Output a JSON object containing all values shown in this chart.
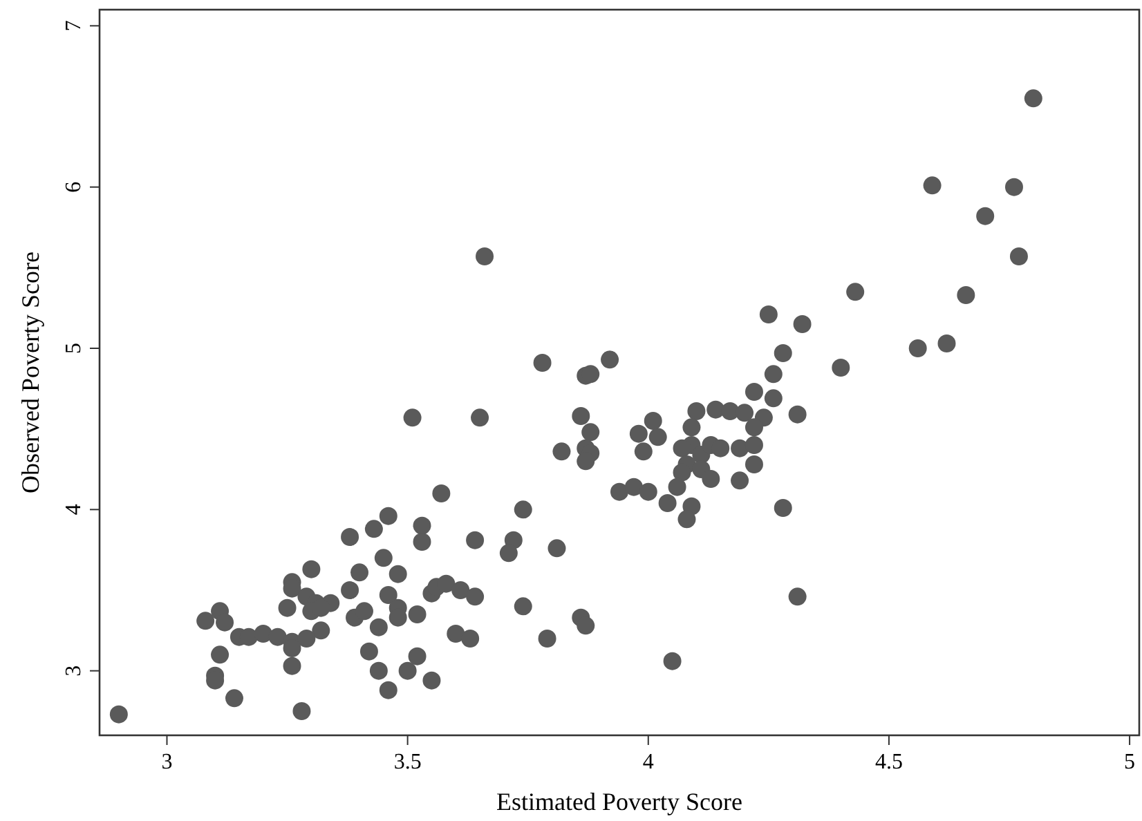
{
  "chart_data": {
    "type": "scatter",
    "xlabel": "Estimated Poverty Score",
    "ylabel": "Observed Poverty Score",
    "xlim": [
      2.86,
      5.02
    ],
    "ylim": [
      2.6,
      7.1
    ],
    "xticks": [
      3,
      3.5,
      4,
      4.5,
      5
    ],
    "yticks": [
      3,
      4,
      5,
      6,
      7
    ],
    "grid": false,
    "marker": "circle",
    "series": [
      {
        "color": "#5a5a5a",
        "x": [
          3.08,
          3.11,
          3.12,
          3.15,
          3.17,
          3.2,
          3.23,
          3.26,
          3.26,
          3.26,
          3.11,
          3.1,
          3.1,
          3.14,
          3.28,
          2.9,
          3.25,
          3.26,
          3.26,
          3.3,
          3.29,
          3.31,
          3.3,
          3.34,
          3.32,
          3.32,
          3.29,
          3.38,
          3.38,
          3.4,
          3.39,
          3.41,
          3.43,
          3.46,
          3.45,
          3.48,
          3.46,
          3.48,
          3.48,
          3.44,
          3.42,
          3.44,
          3.46,
          3.53,
          3.53,
          3.52,
          3.55,
          3.52,
          3.5,
          3.55,
          3.57,
          3.78,
          3.92,
          3.87,
          3.88,
          3.65,
          3.86,
          3.88,
          3.82,
          3.87,
          3.88,
          3.87,
          3.51,
          3.74,
          3.64,
          3.72,
          3.71,
          3.81,
          3.56,
          3.58,
          3.61,
          3.64,
          3.74,
          3.86,
          3.87,
          3.6,
          3.63,
          3.79,
          4.05,
          4.25,
          4.32,
          4.28,
          4.4,
          4.26,
          4.22,
          4.26,
          4.31,
          4.1,
          4.14,
          4.17,
          4.2,
          4.24,
          4.01,
          4.02,
          3.98,
          3.99,
          4.09,
          4.09,
          4.07,
          4.11,
          4.13,
          4.08,
          4.11,
          4.13,
          4.15,
          4.19,
          4.22,
          4.22,
          4.22,
          4.07,
          4.06,
          4.19,
          3.94,
          3.97,
          4.0,
          4.04,
          4.09,
          4.08,
          4.28,
          4.31,
          4.8,
          4.59,
          4.76,
          4.7,
          4.77,
          4.66,
          4.43,
          4.56,
          4.62,
          3.66
        ],
        "values": [
          3.31,
          3.37,
          3.3,
          3.21,
          3.21,
          3.23,
          3.21,
          3.18,
          3.14,
          3.03,
          3.1,
          2.97,
          2.94,
          2.83,
          2.75,
          2.73,
          3.39,
          3.55,
          3.51,
          3.63,
          3.46,
          3.42,
          3.37,
          3.42,
          3.39,
          3.25,
          3.2,
          3.83,
          3.5,
          3.61,
          3.33,
          3.37,
          3.88,
          3.96,
          3.7,
          3.6,
          3.47,
          3.39,
          3.33,
          3.27,
          3.12,
          3.0,
          2.88,
          3.9,
          3.8,
          3.35,
          3.48,
          3.09,
          3.0,
          2.94,
          4.1,
          4.91,
          4.93,
          4.83,
          4.84,
          4.57,
          4.58,
          4.48,
          4.36,
          4.38,
          4.35,
          4.3,
          4.57,
          4.0,
          3.81,
          3.81,
          3.73,
          3.76,
          3.52,
          3.54,
          3.5,
          3.46,
          3.4,
          3.33,
          3.28,
          3.23,
          3.2,
          3.2,
          3.06,
          5.21,
          5.15,
          4.97,
          4.88,
          4.84,
          4.73,
          4.69,
          4.59,
          4.61,
          4.62,
          4.61,
          4.6,
          4.57,
          4.55,
          4.45,
          4.47,
          4.36,
          4.51,
          4.4,
          4.38,
          4.34,
          4.4,
          4.28,
          4.25,
          4.19,
          4.38,
          4.38,
          4.4,
          4.28,
          4.51,
          4.23,
          4.14,
          4.18,
          4.11,
          4.14,
          4.11,
          4.04,
          4.02,
          3.94,
          4.01,
          3.46,
          6.55,
          6.01,
          6.0,
          5.82,
          5.57,
          5.33,
          5.35,
          5.0,
          5.03,
          5.57
        ]
      }
    ]
  }
}
